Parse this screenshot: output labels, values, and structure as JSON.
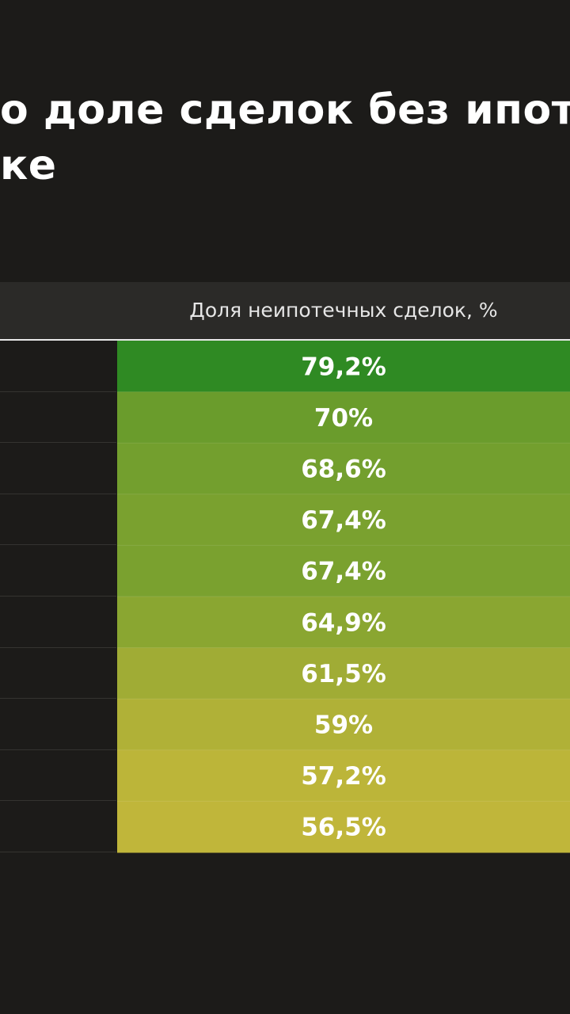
{
  "title": {
    "lines": [
      "о доле сделок без ипот",
      "ке"
    ]
  },
  "chart_data": {
    "type": "table",
    "column_header": "Доля неипотечных сделок, %",
    "values": [
      79.2,
      70,
      68.6,
      67.4,
      67.4,
      64.9,
      61.5,
      59,
      57.2,
      56.5
    ],
    "labels": [
      "79,2%",
      "70%",
      "68,6%",
      "67,4%",
      "67,4%",
      "64,9%",
      "61,5%",
      "59%",
      "57,2%",
      "56,5%"
    ],
    "colors": {
      "high": "#2f8a23",
      "low": "#c0b63a",
      "background": "#1c1b19",
      "header_band": "#2b2a28"
    }
  }
}
